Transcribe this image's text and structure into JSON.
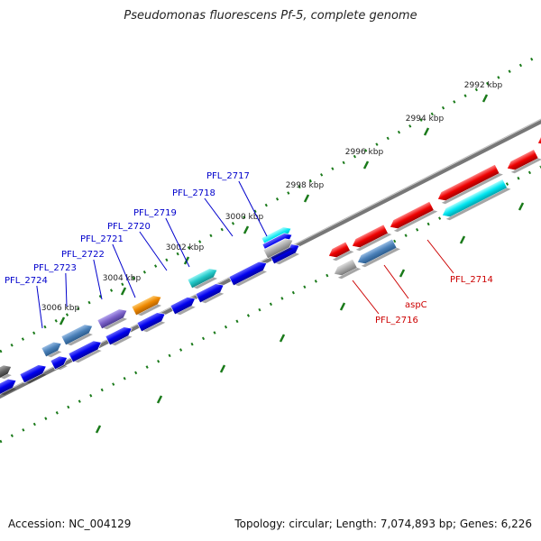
{
  "title": "Pseudomonas fluorescens Pf-5, complete genome",
  "footer": {
    "accession": "Accession: NC_004129",
    "summary": "Topology: circular; Length: 7,074,893 bp; Genes: 6,226"
  },
  "ticks": [
    {
      "label": "2992 kbp",
      "kbp": 2992
    },
    {
      "label": "2994 kbp",
      "kbp": 2994
    },
    {
      "label": "2996 kbp",
      "kbp": 2996
    },
    {
      "label": "2998 kbp",
      "kbp": 2998
    },
    {
      "label": "3000 kbp",
      "kbp": 3000
    },
    {
      "label": "3002 kbp",
      "kbp": 3002
    },
    {
      "label": "3004 kbp",
      "kbp": 3004
    },
    {
      "label": "3006 kbp",
      "kbp": 3006
    }
  ],
  "genes_labeled_plus": [
    {
      "label": "PFL_2717",
      "color": "#0000cc"
    },
    {
      "label": "PFL_2718",
      "color": "#0000cc"
    },
    {
      "label": "PFL_2719",
      "color": "#0000cc"
    },
    {
      "label": "PFL_2720",
      "color": "#0000cc"
    },
    {
      "label": "PFL_2721",
      "color": "#0000cc"
    },
    {
      "label": "PFL_2722",
      "color": "#0000cc"
    },
    {
      "label": "PFL_2723",
      "color": "#0000cc"
    },
    {
      "label": "PFL_2724",
      "color": "#0000cc"
    }
  ],
  "genes_labeled_minus": [
    {
      "label": "PFL_2714",
      "color": "#cc0000"
    },
    {
      "label": "aspC",
      "color": "#cc0000"
    },
    {
      "label": "PFL_2716",
      "color": "#cc0000"
    }
  ],
  "colors": {
    "plus_strand": "#0000ee",
    "minus_strand": "#ee0000",
    "backbone": "#888888",
    "tick": "#1a7a1a",
    "cog_cyan": "#22c8c8",
    "cog_steel": "#4a80b8",
    "cog_purple": "#7a60c8",
    "cog_orange": "#ee8800",
    "cog_gray": "#aaaaaa",
    "cog_aqua": "#00e5f0"
  }
}
